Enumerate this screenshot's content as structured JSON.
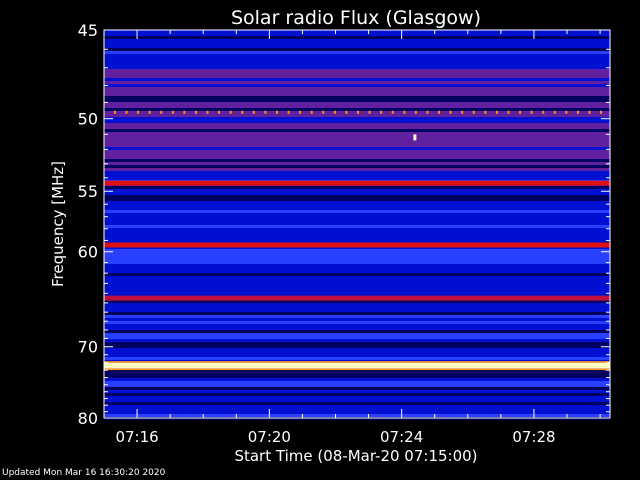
{
  "chart_data": {
    "type": "heatmap",
    "title": "Solar radio Flux (Glasgow)",
    "xlabel": "Start Time (08-Mar-20 07:15:00)",
    "ylabel": "Frequency [MHz]",
    "xlim_minutes": [
      0,
      15.3
    ],
    "ylim_mhz": [
      45,
      80
    ],
    "x_ticks": [
      {
        "label": "07:16",
        "minute": 1
      },
      {
        "label": "07:20",
        "minute": 5
      },
      {
        "label": "07:24",
        "minute": 9
      },
      {
        "label": "07:28",
        "minute": 13
      }
    ],
    "y_ticks": [
      "45",
      "50",
      "55",
      "60",
      "70",
      "80"
    ],
    "y_scale": "reciprocal",
    "colormap": [
      "#000060",
      "#0010d0",
      "#2a40ff",
      "#6020a0",
      "#e01010",
      "#ff9020",
      "#ffffc0"
    ],
    "bands": [
      {
        "freq_mhz": 54.4,
        "intensity": 0.8
      },
      {
        "freq_mhz": 59.4,
        "intensity": 0.8
      },
      {
        "freq_mhz": 64.5,
        "intensity": 0.6
      },
      {
        "freq_mhz": 72.4,
        "intensity": 1.0
      }
    ],
    "bursts": [
      {
        "minute": 9.4,
        "freq_mhz": 51.2
      }
    ]
  },
  "footer": {
    "updated": "Updated Mon Mar 16 16:30:20 2020"
  }
}
